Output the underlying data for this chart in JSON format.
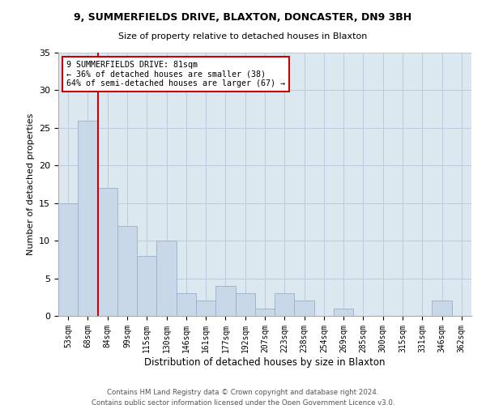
{
  "title_line1": "9, SUMMERFIELDS DRIVE, BLAXTON, DONCASTER, DN9 3BH",
  "title_line2": "Size of property relative to detached houses in Blaxton",
  "xlabel": "Distribution of detached houses by size in Blaxton",
  "ylabel": "Number of detached properties",
  "footer_line1": "Contains HM Land Registry data © Crown copyright and database right 2024.",
  "footer_line2": "Contains public sector information licensed under the Open Government Licence v3.0.",
  "categories": [
    "53sqm",
    "68sqm",
    "84sqm",
    "99sqm",
    "115sqm",
    "130sqm",
    "146sqm",
    "161sqm",
    "177sqm",
    "192sqm",
    "207sqm",
    "223sqm",
    "238sqm",
    "254sqm",
    "269sqm",
    "285sqm",
    "300sqm",
    "315sqm",
    "331sqm",
    "346sqm",
    "362sqm"
  ],
  "values": [
    15,
    26,
    17,
    12,
    8,
    10,
    3,
    2,
    4,
    3,
    1,
    3,
    2,
    0,
    1,
    0,
    0,
    0,
    0,
    2,
    0
  ],
  "bar_color": "#c8d8e8",
  "bar_edge_color": "#9ab0c8",
  "plot_bg_color": "#dce8f0",
  "background_color": "#ffffff",
  "grid_color": "#bbccdd",
  "annotation_text": "9 SUMMERFIELDS DRIVE: 81sqm\n← 36% of detached houses are smaller (38)\n64% of semi-detached houses are larger (67) →",
  "vline_x_index": 1.5,
  "annotation_box_color": "#ffffff",
  "annotation_box_edge_color": "#cc0000",
  "vline_color": "#cc0000",
  "ylim": [
    0,
    35
  ],
  "yticks": [
    0,
    5,
    10,
    15,
    20,
    25,
    30,
    35
  ]
}
